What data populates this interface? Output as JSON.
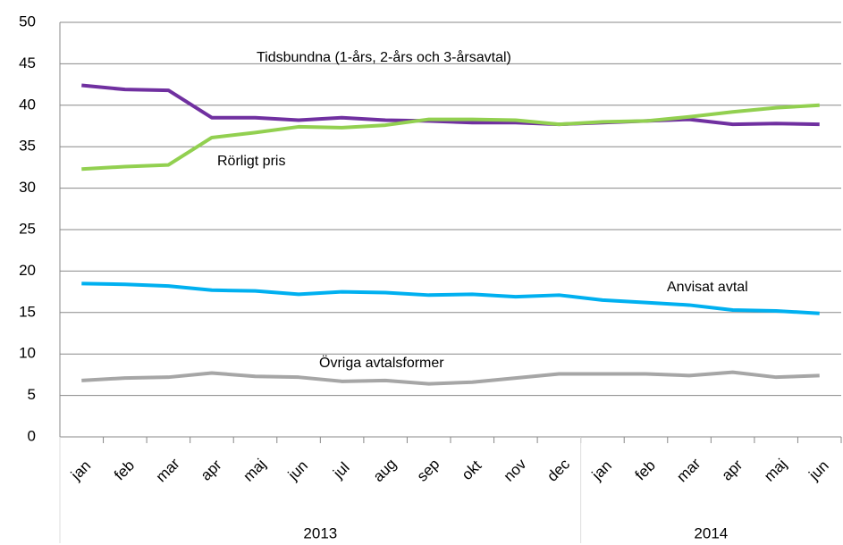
{
  "chart_data": {
    "type": "line",
    "categories": [
      "jan",
      "feb",
      "mar",
      "apr",
      "maj",
      "jun",
      "jul",
      "aug",
      "sep",
      "okt",
      "nov",
      "dec",
      "jan",
      "feb",
      "mar",
      "apr",
      "maj",
      "jun"
    ],
    "group_labels": [
      "2013",
      null,
      null,
      null,
      null,
      null,
      null,
      null,
      null,
      null,
      null,
      null,
      "2014",
      null,
      null,
      null,
      null,
      null
    ],
    "series": [
      {
        "name": "Tidsbundna (1-års, 2-års och 3-årsavtal)",
        "color": "#7030a0",
        "values": [
          42.4,
          41.9,
          41.8,
          38.5,
          38.5,
          38.2,
          38.5,
          38.2,
          38.1,
          37.9,
          37.9,
          37.7,
          37.9,
          38.1,
          38.3,
          37.7,
          37.8,
          37.7
        ]
      },
      {
        "name": "Rörligt pris",
        "color": "#92d050",
        "values": [
          32.3,
          32.6,
          32.8,
          36.1,
          36.7,
          37.4,
          37.3,
          37.6,
          38.3,
          38.3,
          38.2,
          37.7,
          38.0,
          38.1,
          38.6,
          39.2,
          39.7,
          40.0
        ]
      },
      {
        "name": "Anvisat avtal",
        "color": "#00b0f0",
        "values": [
          18.5,
          18.4,
          18.2,
          17.7,
          17.6,
          17.2,
          17.5,
          17.4,
          17.1,
          17.2,
          16.9,
          17.1,
          16.5,
          16.2,
          15.9,
          15.3,
          15.2,
          14.9
        ]
      },
      {
        "name": "Övriga avtalsformer",
        "color": "#a6a6a6",
        "values": [
          6.8,
          7.1,
          7.2,
          7.7,
          7.3,
          7.2,
          6.7,
          6.8,
          6.4,
          6.6,
          7.1,
          7.6,
          7.6,
          7.6,
          7.4,
          7.8,
          7.2,
          7.4
        ]
      }
    ],
    "ylim": [
      0,
      50
    ],
    "yticks": [
      0,
      5,
      10,
      15,
      20,
      25,
      30,
      35,
      40,
      45,
      50
    ],
    "grid": true
  }
}
